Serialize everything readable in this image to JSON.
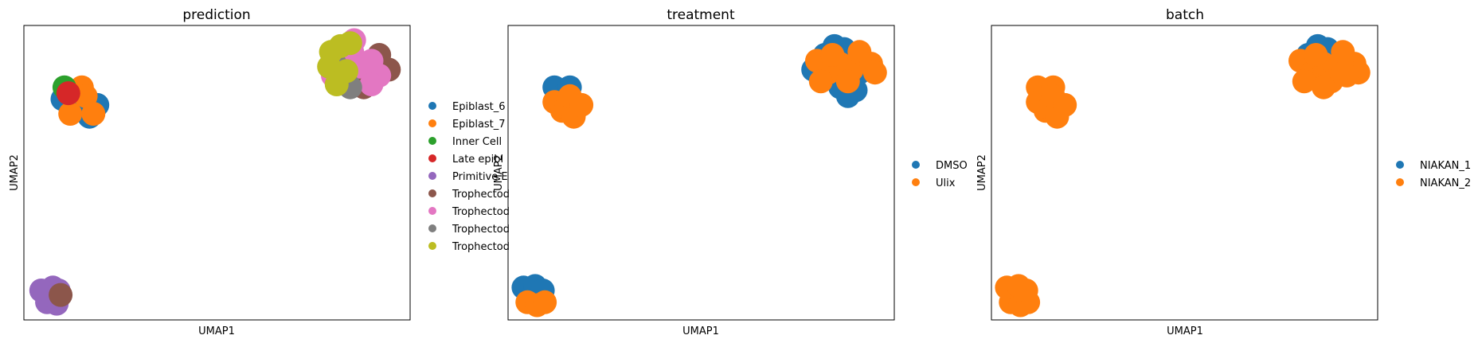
{
  "chart_data": [
    {
      "type": "scatter",
      "title": "prediction",
      "xlabel": "UMAP1",
      "ylabel": "UMAP2",
      "grid": false,
      "legend_position": "right",
      "xlim": [
        0,
        10
      ],
      "ylim": [
        0,
        10
      ],
      "series": [
        {
          "name": "Epiblast_6",
          "color": "#1f77b4",
          "points": [
            [
              1.0,
              7.5
            ],
            [
              1.3,
              7.1
            ],
            [
              1.6,
              7.4
            ],
            [
              1.9,
              7.3
            ],
            [
              1.4,
              7.8
            ],
            [
              1.2,
              7.3
            ],
            [
              1.7,
              6.9
            ]
          ]
        },
        {
          "name": "Epiblast_7",
          "color": "#ff7f0e",
          "points": [
            [
              1.2,
              7.0
            ],
            [
              1.5,
              7.9
            ],
            [
              1.6,
              7.6
            ],
            [
              1.8,
              7.0
            ]
          ]
        },
        {
          "name": "Inner Cell",
          "color": "#2ca02c",
          "points": [
            [
              1.05,
              7.9
            ]
          ]
        },
        {
          "name": "Late epibl",
          "color": "#d62728",
          "points": [
            [
              1.15,
              7.7
            ]
          ]
        },
        {
          "name": "Primitive E",
          "color": "#9467bd",
          "points": [
            [
              0.45,
              1.0
            ],
            [
              0.75,
              1.1
            ],
            [
              0.9,
              1.0
            ],
            [
              0.6,
              0.6
            ],
            [
              0.85,
              0.55
            ],
            [
              0.75,
              0.8
            ]
          ]
        },
        {
          "name": "Trophectod",
          "color": "#8c564b",
          "points": [
            [
              9.2,
              9.0
            ],
            [
              9.45,
              8.5
            ],
            [
              8.8,
              7.9
            ],
            [
              0.95,
              0.85
            ]
          ]
        },
        {
          "name": "Trophectod",
          "color": "#e377c2",
          "points": [
            [
              8.2,
              8.8
            ],
            [
              8.5,
              9.1
            ],
            [
              8.7,
              8.6
            ],
            [
              9.0,
              8.8
            ],
            [
              9.2,
              8.3
            ],
            [
              8.0,
              8.3
            ],
            [
              8.55,
              9.5
            ],
            [
              9.0,
              8.0
            ],
            [
              8.3,
              8.1
            ]
          ]
        },
        {
          "name": "Trophectod",
          "color": "#7f7f7f",
          "points": [
            [
              8.45,
              7.9
            ],
            [
              8.05,
              8.7
            ]
          ]
        },
        {
          "name": "Trophectod",
          "color": "#bcbd22",
          "points": [
            [
              7.95,
              9.1
            ],
            [
              8.2,
              9.3
            ],
            [
              7.9,
              8.6
            ],
            [
              8.1,
              8.0
            ],
            [
              8.35,
              8.45
            ],
            [
              8.45,
              9.4
            ]
          ]
        }
      ]
    },
    {
      "type": "scatter",
      "title": "treatment",
      "xlabel": "UMAP1",
      "ylabel": "UMAP2",
      "grid": false,
      "legend_position": "right",
      "xlim": [
        0,
        10
      ],
      "ylim": [
        0,
        10
      ],
      "series": [
        {
          "name": "DMSO",
          "color": "#1f77b4",
          "points": [
            [
              1.2,
              7.9
            ],
            [
              1.4,
              7.6
            ],
            [
              1.6,
              7.9
            ],
            [
              8.2,
              9.0
            ],
            [
              8.45,
              9.3
            ],
            [
              8.7,
              9.2
            ],
            [
              9.2,
              8.8
            ],
            [
              8.6,
              7.9
            ],
            [
              8.8,
              7.6
            ],
            [
              9.0,
              7.8
            ],
            [
              9.1,
              8.4
            ],
            [
              7.9,
              8.5
            ],
            [
              0.4,
              1.1
            ],
            [
              0.7,
              1.15
            ],
            [
              0.9,
              1.0
            ]
          ]
        },
        {
          "name": "Ulix",
          "color": "#ff7f0e",
          "points": [
            [
              1.2,
              7.4
            ],
            [
              1.4,
              7.1
            ],
            [
              1.5,
              7.2
            ],
            [
              1.7,
              6.9
            ],
            [
              1.6,
              7.6
            ],
            [
              1.9,
              7.3
            ],
            [
              8.0,
              8.8
            ],
            [
              8.3,
              8.4
            ],
            [
              8.6,
              8.7
            ],
            [
              8.9,
              8.5
            ],
            [
              9.1,
              9.1
            ],
            [
              9.4,
              8.7
            ],
            [
              9.5,
              8.4
            ],
            [
              8.8,
              8.1
            ],
            [
              8.1,
              8.1
            ],
            [
              8.4,
              9.0
            ],
            [
              0.5,
              0.6
            ],
            [
              0.75,
              0.5
            ],
            [
              0.95,
              0.6
            ]
          ]
        }
      ]
    },
    {
      "type": "scatter",
      "title": "batch",
      "xlabel": "UMAP1",
      "ylabel": "UMAP2",
      "grid": false,
      "legend_position": "right",
      "xlim": [
        0,
        10
      ],
      "ylim": [
        0,
        10
      ],
      "series": [
        {
          "name": "NIAKAN_1",
          "color": "#1f77b4",
          "points": [
            [
              8.2,
              9.0
            ],
            [
              8.45,
              9.3
            ],
            [
              8.7,
              9.2
            ],
            [
              9.0,
              8.9
            ]
          ]
        },
        {
          "name": "NIAKAN_2",
          "color": "#ff7f0e",
          "points": [
            [
              1.2,
              7.9
            ],
            [
              1.4,
              7.6
            ],
            [
              1.6,
              7.9
            ],
            [
              1.2,
              7.4
            ],
            [
              1.4,
              7.1
            ],
            [
              1.5,
              7.2
            ],
            [
              1.7,
              6.9
            ],
            [
              1.6,
              7.6
            ],
            [
              1.9,
              7.3
            ],
            [
              8.0,
              8.8
            ],
            [
              8.3,
              8.4
            ],
            [
              8.6,
              8.7
            ],
            [
              8.9,
              8.5
            ],
            [
              9.1,
              9.1
            ],
            [
              9.4,
              8.7
            ],
            [
              9.5,
              8.4
            ],
            [
              8.8,
              8.1
            ],
            [
              8.1,
              8.1
            ],
            [
              8.4,
              9.0
            ],
            [
              9.2,
              8.3
            ],
            [
              8.6,
              7.9
            ],
            [
              0.5,
              0.6
            ],
            [
              0.75,
              0.5
            ],
            [
              0.95,
              0.6
            ],
            [
              0.4,
              1.1
            ],
            [
              0.7,
              1.15
            ],
            [
              0.9,
              1.0
            ]
          ]
        }
      ]
    }
  ]
}
